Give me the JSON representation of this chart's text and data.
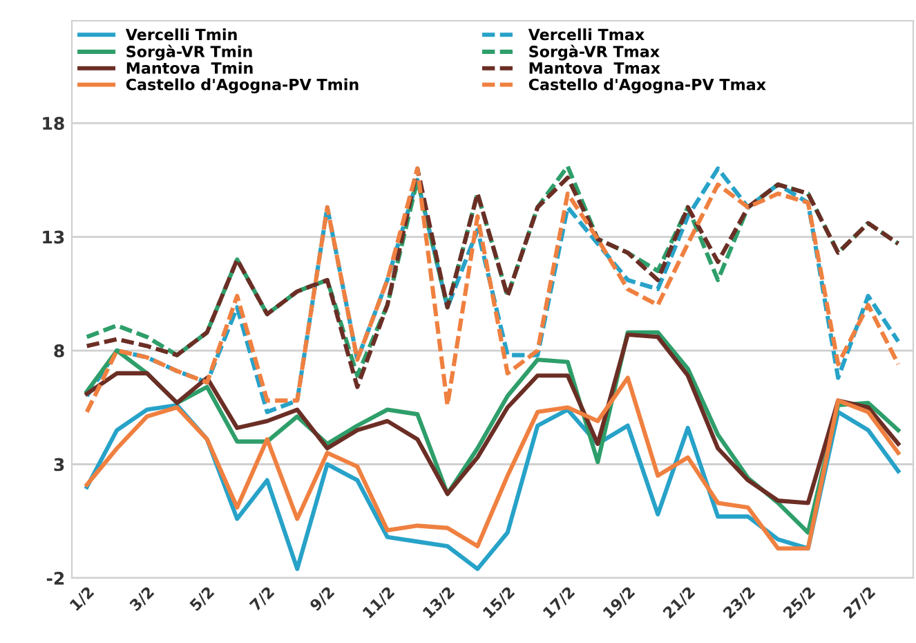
{
  "chart_data": {
    "type": "line",
    "categories": [
      "1/2",
      null,
      "3/2",
      null,
      "5/2",
      null,
      "7/2",
      null,
      "9/2",
      null,
      "11/2",
      null,
      "13/2",
      null,
      "15/2",
      null,
      "17/2",
      null,
      "19/2",
      null,
      "21/2",
      null,
      "23/2",
      null,
      "25/2",
      null,
      "27/2",
      null
    ],
    "ylim": [
      -2,
      22.5
    ],
    "yticks": [
      -2,
      3,
      8,
      13,
      18
    ],
    "grid": "y",
    "legend": "top left",
    "series": [
      {
        "name": "Vercelli Tmin",
        "color": "#27a2c8",
        "line_style": "solid",
        "values": [
          2.0,
          4.5,
          5.4,
          5.6,
          4.1,
          0.6,
          2.3,
          -1.6,
          3.0,
          2.3,
          -0.2,
          -0.4,
          -0.6,
          -1.6,
          0.0,
          4.7,
          5.4,
          3.9,
          4.7,
          0.8,
          4.6,
          0.7,
          0.7,
          -0.3,
          -0.7,
          5.3,
          4.5,
          2.7
        ]
      },
      {
        "name": "Vercelli Tmax",
        "color": "#27a2c8",
        "line_style": "dashed",
        "values": [
          6.0,
          8.0,
          7.7,
          7.1,
          6.6,
          9.9,
          5.3,
          5.8,
          14.3,
          7.6,
          11.1,
          15.5,
          9.9,
          13.3,
          7.8,
          7.8,
          14.3,
          12.7,
          11.1,
          10.7,
          13.9,
          16.0,
          14.3,
          15.3,
          14.5,
          6.8,
          10.4,
          8.4
        ]
      },
      {
        "name": "Sorgà-VR Tmin",
        "color": "#2e9e6a",
        "line_style": "solid",
        "values": [
          6.2,
          8.0,
          7.0,
          5.7,
          6.4,
          4.0,
          4.0,
          5.1,
          3.9,
          4.7,
          5.4,
          5.2,
          1.7,
          3.7,
          6.0,
          7.6,
          7.5,
          3.1,
          8.8,
          8.8,
          7.2,
          4.3,
          2.4,
          1.3,
          0.0,
          5.6,
          5.7,
          4.5
        ]
      },
      {
        "name": "Sorgà-VR Tmax",
        "color": "#2e9e6a",
        "line_style": "dashed",
        "values": [
          8.6,
          9.1,
          8.6,
          7.8,
          8.8,
          12.0,
          9.6,
          10.6,
          11.1,
          6.9,
          10.0,
          15.5,
          9.9,
          14.9,
          10.4,
          14.3,
          16.1,
          12.9,
          12.3,
          11.5,
          14.3,
          11.1,
          14.3,
          15.3,
          14.9,
          12.3,
          13.6,
          12.7
        ]
      },
      {
        "name": "Mantova  Tmin",
        "color": "#6b2e25",
        "line_style": "solid",
        "values": [
          6.1,
          7.0,
          7.0,
          5.7,
          6.8,
          4.6,
          4.9,
          5.4,
          3.7,
          4.5,
          4.9,
          4.1,
          1.7,
          3.3,
          5.5,
          6.9,
          6.9,
          3.9,
          8.7,
          8.6,
          6.9,
          3.7,
          2.3,
          1.4,
          1.3,
          5.8,
          5.5,
          3.9
        ]
      },
      {
        "name": "Mantova  Tmax",
        "color": "#6b2e25",
        "line_style": "dashed",
        "values": [
          8.2,
          8.5,
          8.2,
          7.8,
          8.8,
          12.0,
          9.6,
          10.6,
          11.1,
          6.4,
          10.0,
          16.0,
          9.9,
          14.9,
          10.4,
          14.3,
          15.6,
          12.9,
          12.3,
          11.1,
          14.3,
          11.9,
          14.3,
          15.3,
          14.9,
          12.3,
          13.6,
          12.7
        ]
      },
      {
        "name": "Castello d'Agogna-PV Tmin",
        "color": "#ef8040",
        "line_style": "solid",
        "values": [
          2.1,
          3.7,
          5.1,
          5.5,
          4.1,
          1.1,
          4.1,
          0.6,
          3.5,
          2.9,
          0.1,
          0.3,
          0.2,
          -0.6,
          2.5,
          5.3,
          5.5,
          4.9,
          6.8,
          2.5,
          3.3,
          1.3,
          1.1,
          -0.7,
          -0.7,
          5.8,
          5.3,
          3.5
        ]
      },
      {
        "name": "Castello d'Agogna-PV Tmax",
        "color": "#ef8040",
        "line_style": "dashed",
        "values": [
          5.3,
          8.0,
          7.7,
          7.1,
          6.6,
          10.4,
          5.8,
          5.8,
          14.3,
          7.6,
          11.1,
          16.0,
          5.6,
          13.9,
          7.0,
          8.0,
          14.9,
          12.9,
          10.7,
          10.0,
          12.7,
          15.3,
          14.3,
          14.9,
          14.5,
          7.4,
          10.0,
          7.4
        ]
      }
    ]
  }
}
